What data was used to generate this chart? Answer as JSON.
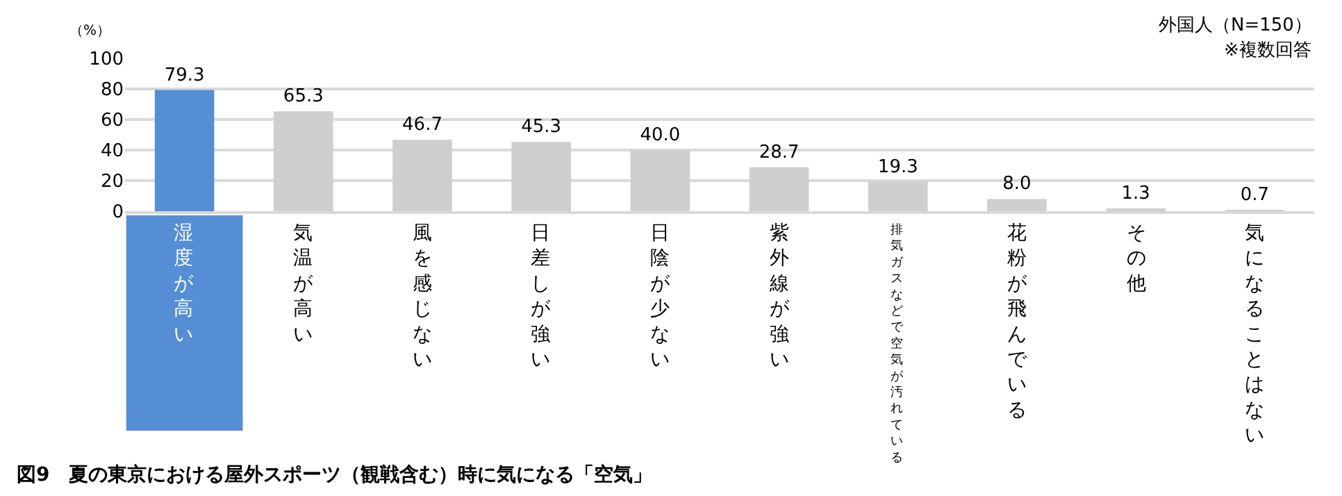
{
  "chart_data": {
    "type": "bar",
    "title": "図9　夏の東京における屋外スポーツ（観戦含む）時に気になる「空気」",
    "ylabel": "（%）",
    "annotations": [
      "外国人（N=150）",
      "※複数回答"
    ],
    "categories": [
      "湿度が高い",
      "気温が高い",
      "風を感じない",
      "日差しが強い",
      "日陰が少ない",
      "紫外線が強い",
      "排気ガスなどで空気が汚れている",
      "花粉が飛んでいる",
      "その他",
      "気になることはない"
    ],
    "values": [
      79.3,
      65.3,
      46.7,
      45.3,
      40.0,
      28.7,
      19.3,
      8.0,
      1.3,
      0.7
    ],
    "colors": [
      "#558ed5",
      "#d0cece",
      "#d0cece",
      "#d0cece",
      "#d0cece",
      "#d0cece",
      "#d0cece",
      "#d0cece",
      "#d0cece",
      "#d0cece"
    ],
    "value_labels": [
      "79.3",
      "65.3",
      "46.7",
      "45.3",
      "40.0",
      "28.7",
      "19.3",
      "8.0",
      "1.3",
      "0.7"
    ],
    "ylim": [
      0,
      100
    ],
    "yticks": [
      0,
      20,
      40,
      60,
      80,
      100
    ],
    "grid": "y"
  }
}
